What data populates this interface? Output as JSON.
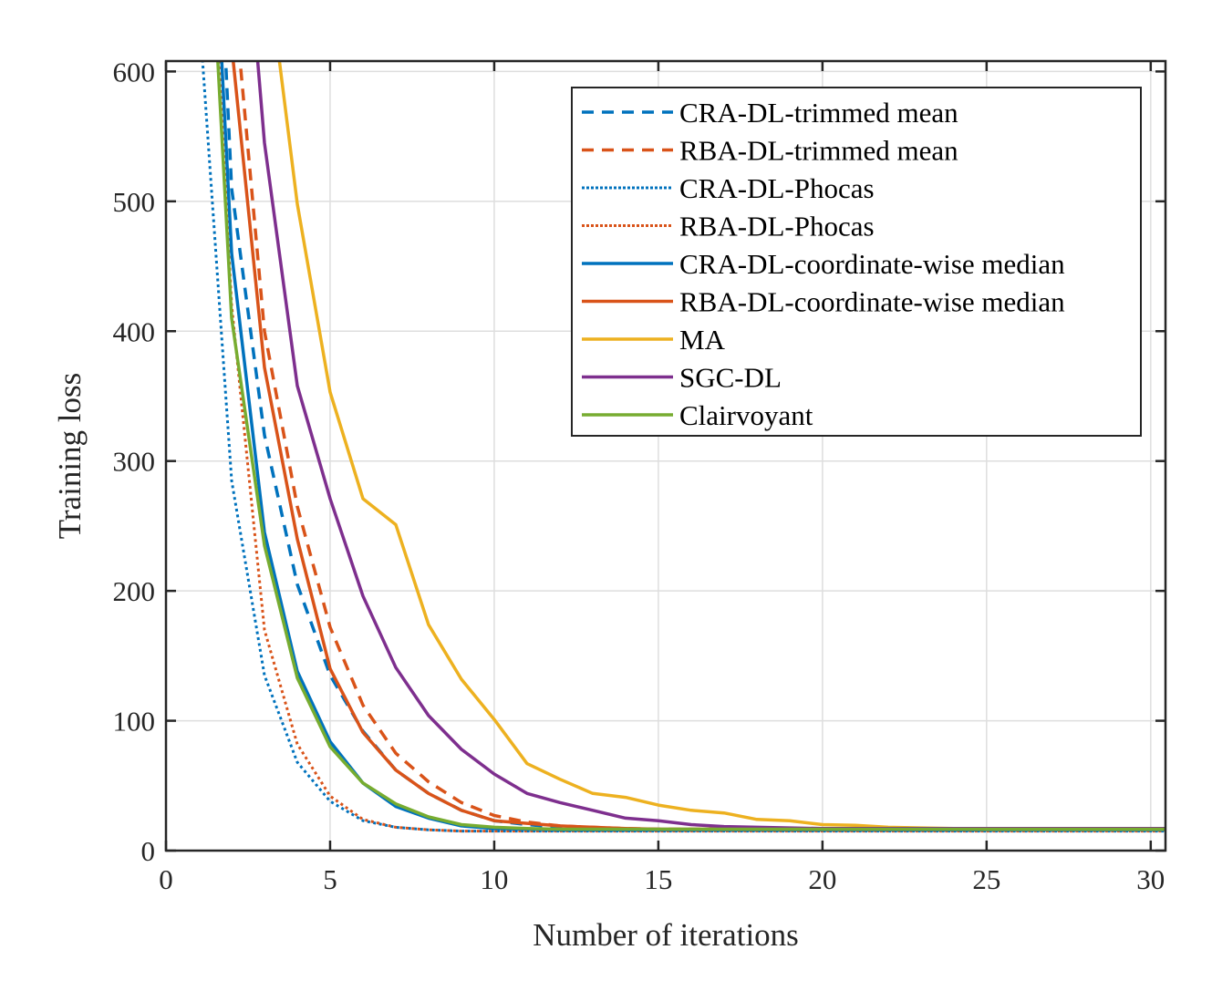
{
  "chart_data": {
    "type": "line",
    "title": "",
    "xlabel": "Number of iterations",
    "ylabel": "Training loss",
    "xlim": [
      0,
      30.45
    ],
    "ylim": [
      0,
      608
    ],
    "xticks": [
      0,
      5,
      10,
      15,
      20,
      25,
      30
    ],
    "yticks": [
      0,
      100,
      200,
      300,
      400,
      500,
      600
    ],
    "xtick_labels": [
      "0",
      "5",
      "10",
      "15",
      "20",
      "25",
      "30"
    ],
    "ytick_labels": [
      "0",
      "100",
      "200",
      "300",
      "400",
      "500",
      "600"
    ],
    "grid": true,
    "legend_position": "top-right",
    "x": [
      1,
      2,
      3,
      4,
      5,
      6,
      7,
      8,
      9,
      10,
      11,
      12,
      13,
      14,
      15,
      16,
      17,
      18,
      19,
      20,
      21,
      22,
      23,
      24,
      25,
      26,
      27,
      28,
      29,
      30,
      31
    ],
    "series": [
      {
        "name": "CRA-DL-trimmed mean",
        "color": "#0072BD",
        "style": "dashed",
        "values": [
          1050,
          510,
          320,
          205,
          135,
          92,
          62,
          44,
          31,
          23,
          20,
          18,
          17,
          16.5,
          16,
          16,
          16,
          16,
          16,
          16,
          16,
          16,
          16,
          16,
          16,
          16,
          16,
          16,
          16,
          16,
          16
        ]
      },
      {
        "name": "RBA-DL-trimmed mean",
        "color": "#D95319",
        "style": "dashed",
        "values": [
          1250,
          680,
          400,
          265,
          172,
          112,
          75,
          53,
          37,
          27,
          22,
          19,
          18,
          17,
          16.5,
          16.5,
          16.5,
          16.5,
          16.5,
          16.5,
          16.5,
          16.5,
          16.5,
          16.5,
          16.5,
          16.5,
          16.5,
          16.5,
          16.5,
          16.5,
          16.5
        ]
      },
      {
        "name": "CRA-DL-Phocas",
        "color": "#0072BD",
        "style": "dotted",
        "values": [
          650,
          285,
          135,
          68,
          38,
          23,
          18,
          16,
          15,
          15,
          15,
          15,
          15,
          15,
          15,
          15,
          15,
          15,
          15,
          15,
          15,
          15,
          15,
          15,
          15,
          15,
          15,
          15,
          15,
          15,
          15
        ]
      },
      {
        "name": "RBA-DL-Phocas",
        "color": "#D95319",
        "style": "dotted",
        "values": [
          900,
          420,
          170,
          82,
          42,
          24,
          18,
          16,
          15,
          15,
          15,
          15,
          15,
          15,
          15,
          15,
          15,
          15,
          15,
          15,
          15,
          15,
          15,
          15,
          15,
          15,
          15,
          15,
          15,
          15,
          15
        ]
      },
      {
        "name": "CRA-DL-coordinate-wise median",
        "color": "#0072BD",
        "style": "solid",
        "values": [
          950,
          460,
          245,
          138,
          84,
          52,
          34,
          25,
          19,
          17,
          16.5,
          16,
          16,
          16,
          16,
          16,
          16,
          16,
          16,
          16,
          16,
          16,
          16,
          16,
          16,
          16,
          16,
          16,
          16,
          16,
          16
        ]
      },
      {
        "name": "RBA-DL-coordinate-wise median",
        "color": "#D95319",
        "style": "solid",
        "values": [
          1200,
          620,
          372,
          240,
          140,
          91,
          62,
          44,
          31,
          23,
          21,
          19,
          18,
          17,
          16.5,
          16.5,
          16.5,
          16.5,
          16.5,
          16.5,
          16.5,
          16.5,
          16.5,
          16.5,
          16.5,
          16.5,
          16.5,
          16.5,
          16.5,
          16.5,
          16.5
        ]
      },
      {
        "name": "MA",
        "color": "#EDB120",
        "style": "solid",
        "values": [
          1400,
          1050,
          700,
          498,
          353,
          271,
          251,
          174,
          132,
          101,
          67,
          55,
          44,
          41,
          35,
          31,
          29,
          24,
          23,
          20,
          19.5,
          18,
          17.5,
          17,
          16.5,
          16.5,
          16.5,
          16.5,
          16.5,
          16.5,
          16.5
        ]
      },
      {
        "name": "SGC-DL",
        "color": "#7E2F8E",
        "style": "solid",
        "values": [
          1300,
          850,
          545,
          358,
          271,
          196,
          141,
          104,
          78,
          59,
          44,
          37,
          31,
          25,
          23,
          20,
          18.5,
          18,
          17.5,
          17,
          17,
          17,
          17,
          17,
          17,
          17,
          17,
          17,
          17,
          17,
          17
        ]
      },
      {
        "name": "Clairvoyant",
        "color": "#77AC30",
        "style": "solid",
        "values": [
          880,
          410,
          235,
          133,
          80,
          52,
          36,
          26,
          20,
          18,
          17,
          16.5,
          16.5,
          16.5,
          16.5,
          16.5,
          16.5,
          16.5,
          16.5,
          16.5,
          16.5,
          16.5,
          16.5,
          16.5,
          16.5,
          16.5,
          16.5,
          16.5,
          16.5,
          16.5,
          16.5
        ]
      }
    ]
  }
}
